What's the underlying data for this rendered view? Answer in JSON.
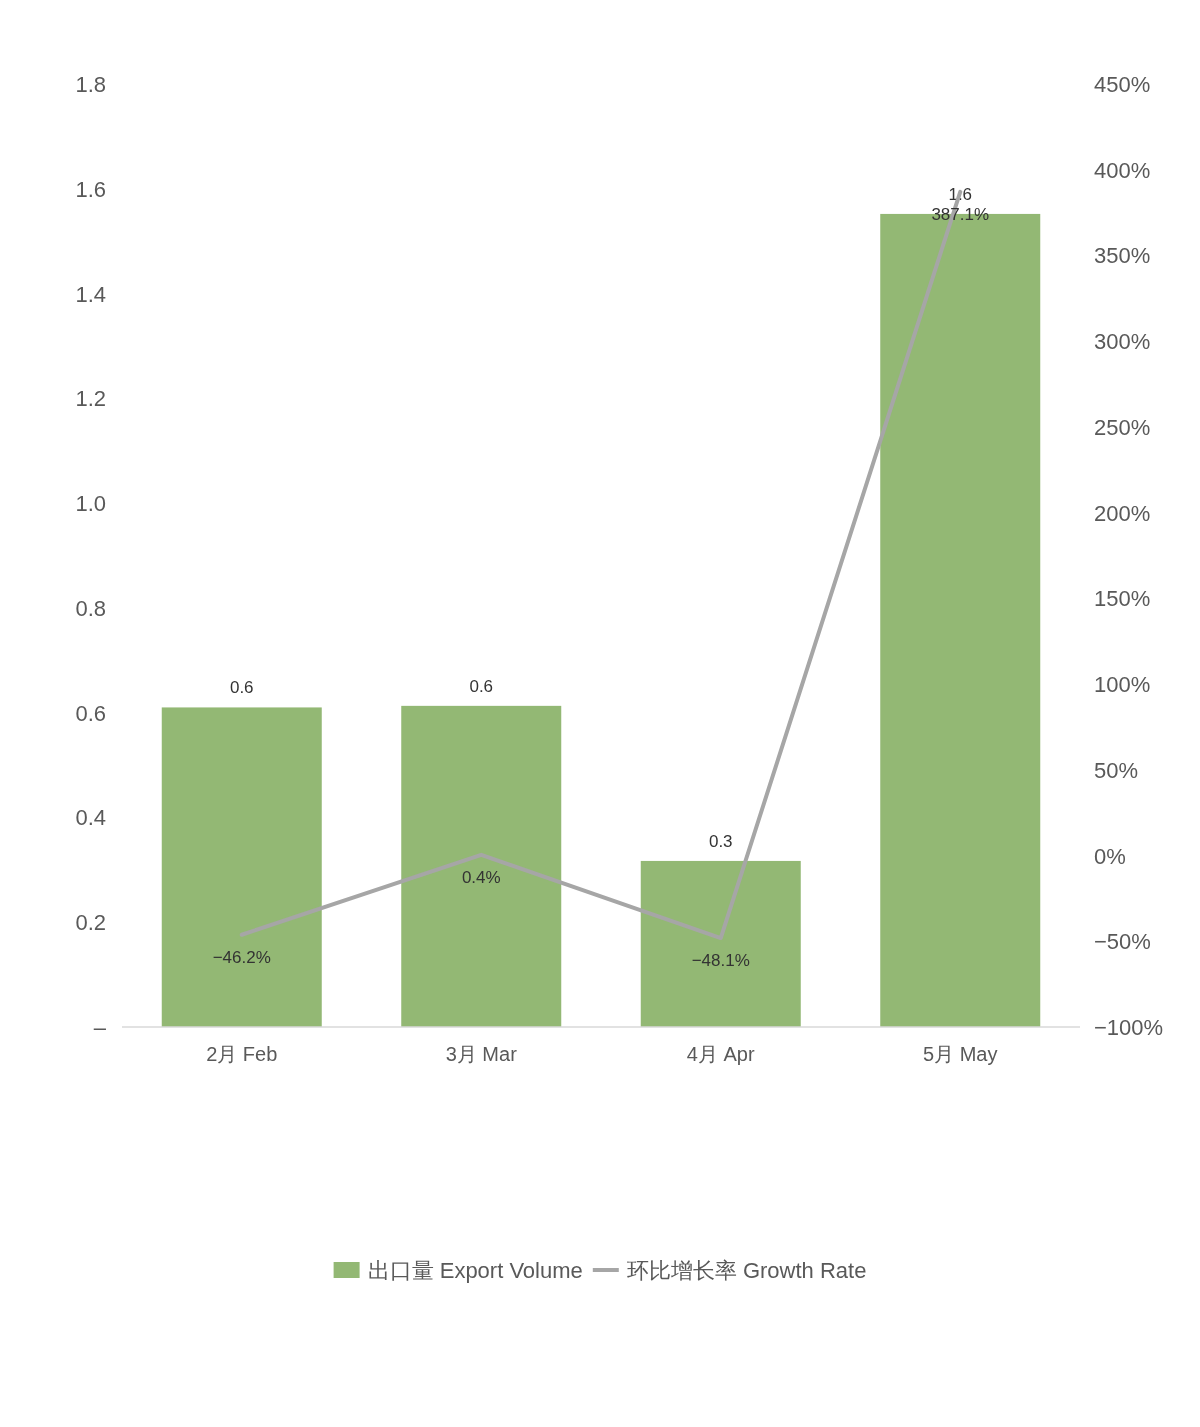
{
  "chart_data": {
    "type": "bar",
    "categories": [
      "2月 Feb",
      "3月 Mar",
      "4月 Apr",
      "5月 May"
    ],
    "series": [
      {
        "name": "出口量 Export Volume",
        "color": "#93b874",
        "values": [
          0.61,
          0.613,
          0.317,
          1.552
        ],
        "value_labels": [
          "0.6",
          "0.6",
          "0.3",
          "1.6"
        ]
      },
      {
        "name": "环比增长率 Growth Rate",
        "type": "line",
        "axis": "y2",
        "color": "#a6a6a6",
        "values": [
          -46.2,
          0.4,
          -48.1,
          387.1
        ],
        "value_labels": [
          "−46.2%",
          "0.4%",
          "−48.1%",
          "387.1%"
        ]
      }
    ],
    "ylim": [
      0,
      1.8
    ],
    "yticks": [
      {
        "value": 0,
        "label": "–"
      },
      {
        "value": 0.2,
        "label": "0.2"
      },
      {
        "value": 0.4,
        "label": "0.4"
      },
      {
        "value": 0.6,
        "label": "0.6"
      },
      {
        "value": 0.8,
        "label": "0.8"
      },
      {
        "value": 1.0,
        "label": "1.0"
      },
      {
        "value": 1.2,
        "label": "1.2"
      },
      {
        "value": 1.4,
        "label": "1.4"
      },
      {
        "value": 1.6,
        "label": "1.6"
      },
      {
        "value": 1.8,
        "label": "1.8"
      }
    ],
    "y2lim": [
      -100,
      450
    ],
    "y2ticks": [
      {
        "value": -100,
        "label": "−100%"
      },
      {
        "value": -50,
        "label": "−50%"
      },
      {
        "value": 0,
        "label": "0%"
      },
      {
        "value": 50,
        "label": "50%"
      },
      {
        "value": 100,
        "label": "100%"
      },
      {
        "value": 150,
        "label": "150%"
      },
      {
        "value": 200,
        "label": "200%"
      },
      {
        "value": 250,
        "label": "250%"
      },
      {
        "value": 300,
        "label": "300%"
      },
      {
        "value": 350,
        "label": "350%"
      },
      {
        "value": 400,
        "label": "400%"
      },
      {
        "value": 450,
        "label": "450%"
      }
    ],
    "legend": "bottom",
    "grid": false
  }
}
